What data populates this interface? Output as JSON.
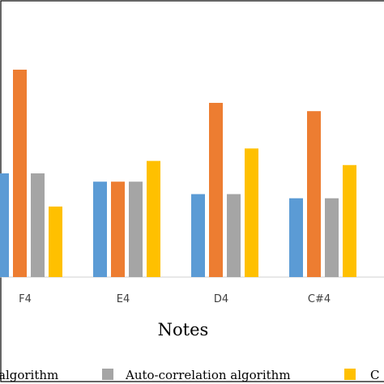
{
  "chart_data": {
    "type": "bar",
    "xlabel": "Notes",
    "categories": [
      "F4",
      "E4",
      "D4",
      "C#4"
    ],
    "series": [
      {
        "name": "algorithm",
        "color": "#5b9bd5",
        "values": [
          25,
          23,
          20,
          19
        ]
      },
      {
        "name": "",
        "color": "#ed7d31",
        "values": [
          50,
          23,
          42,
          40
        ]
      },
      {
        "name": "Auto-correlation algorithm",
        "color": "#a5a5a5",
        "values": [
          25,
          23,
          20,
          19
        ]
      },
      {
        "name": "C",
        "color": "#ffc000",
        "values": [
          17,
          28,
          31,
          27
        ]
      }
    ],
    "ylim": [
      0,
      50
    ],
    "grid": false,
    "legend": "bottom"
  }
}
